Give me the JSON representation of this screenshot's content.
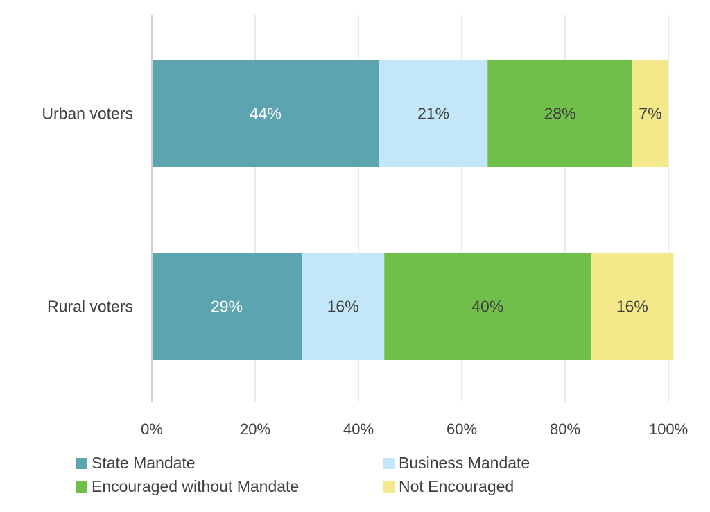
{
  "chart_data": {
    "type": "bar",
    "orientation": "horizontal",
    "stacked": true,
    "categories": [
      "Urban voters",
      "Rural voters"
    ],
    "series": [
      {
        "name": "State Mandate",
        "color": "#5ba4b0",
        "label_color": "#ffffff",
        "values": [
          44,
          29
        ],
        "labels": [
          "44%",
          "29%"
        ]
      },
      {
        "name": "Business Mandate",
        "color": "#c3e7f8",
        "label_color": "#404040",
        "values": [
          21,
          16
        ],
        "labels": [
          "21%",
          "16%"
        ]
      },
      {
        "name": "Encouraged without Mandate",
        "color": "#6fbf4a",
        "label_color": "#404040",
        "values": [
          28,
          40
        ],
        "labels": [
          "28%",
          "40%"
        ]
      },
      {
        "name": "Not Encouraged",
        "color": "#f3e98a",
        "label_color": "#404040",
        "values": [
          7,
          16
        ],
        "labels": [
          "7%",
          "16%"
        ]
      }
    ],
    "xlim": [
      0,
      100
    ],
    "xticks": [
      "0%",
      "20%",
      "40%",
      "60%",
      "80%",
      "100%"
    ],
    "grid": true,
    "legend_position": "bottom"
  }
}
